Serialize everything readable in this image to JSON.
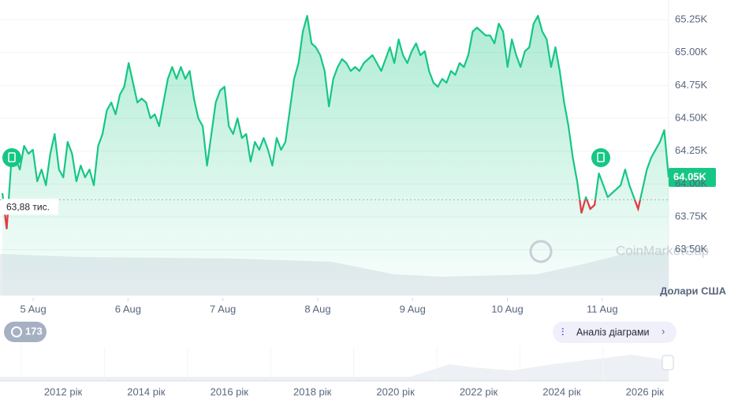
{
  "chart_data": {
    "type": "line",
    "series": [
      {
        "name": "Price",
        "color": "#16c784",
        "below_color": "#ea3943",
        "values": [
          63930,
          63660,
          64140,
          64200,
          64110,
          64290,
          64230,
          64260,
          64020,
          64110,
          63990,
          64230,
          64380,
          64110,
          64050,
          64320,
          64230,
          64020,
          64140,
          64050,
          64110,
          63990,
          64290,
          64380,
          64560,
          64620,
          64530,
          64680,
          64740,
          64920,
          64770,
          64620,
          64650,
          64620,
          64500,
          64530,
          64440,
          64620,
          64800,
          64890,
          64800,
          64890,
          64800,
          64860,
          64650,
          64500,
          64440,
          64140,
          64380,
          64620,
          64710,
          64740,
          64440,
          64380,
          64500,
          64350,
          64380,
          64170,
          64320,
          64260,
          64350,
          64260,
          64140,
          64350,
          64260,
          64320,
          64560,
          64800,
          64920,
          65160,
          65280,
          65070,
          65040,
          64980,
          64860,
          64590,
          64800,
          64890,
          64950,
          64920,
          64860,
          64890,
          64860,
          64920,
          64950,
          64980,
          64920,
          64860,
          64950,
          65040,
          64920,
          65100,
          64980,
          64920,
          65010,
          65070,
          64980,
          65010,
          64860,
          64770,
          64740,
          64800,
          64770,
          64860,
          64830,
          64920,
          64890,
          64980,
          65160,
          65190,
          65160,
          65130,
          65130,
          65070,
          65220,
          65160,
          64890,
          65100,
          64980,
          64890,
          65010,
          65040,
          65220,
          65280,
          65160,
          65100,
          64890,
          65040,
          64860,
          64620,
          64440,
          64200,
          64020,
          63780,
          63900,
          63810,
          63840,
          64080,
          63990,
          63900,
          63930,
          63960,
          63990,
          64110,
          63990,
          63900,
          63810,
          63960,
          64110,
          64200,
          64260,
          64320,
          64410,
          64050
        ]
      }
    ],
    "ylim": [
      63400,
      65400
    ],
    "yticks": [
      {
        "value": 63500,
        "label": "63.50K"
      },
      {
        "value": 63750,
        "label": "63.75K"
      },
      {
        "value": 64000,
        "label": "64.00K"
      },
      {
        "value": 64250,
        "label": "64.25K"
      },
      {
        "value": 64500,
        "label": "64.50K"
      },
      {
        "value": 64750,
        "label": "64.75K"
      },
      {
        "value": 65000,
        "label": "65.00K"
      },
      {
        "value": 65250,
        "label": "65.25K"
      }
    ],
    "xlim": [
      4.65,
      11.7
    ],
    "xticks": [
      {
        "value": 5,
        "label": "5 Aug"
      },
      {
        "value": 6,
        "label": "6 Aug"
      },
      {
        "value": 7,
        "label": "7 Aug"
      },
      {
        "value": 8,
        "label": "8 Aug"
      },
      {
        "value": 9,
        "label": "9 Aug"
      },
      {
        "value": 10,
        "label": "10 Aug"
      },
      {
        "value": 11,
        "label": "11 Aug"
      }
    ],
    "reference": {
      "value": 63880,
      "label": "63,88 тис."
    },
    "current": {
      "value": 64050,
      "label": "64.05K"
    },
    "currency_label": "Долари США",
    "watermark": "CoinMarketCap",
    "news_count": "173",
    "analysis_button": "Аналіз діаграми",
    "navigator_labels": [
      "2012 рік",
      "2014 рік",
      "2016 рік",
      "2018 рік",
      "2020 рік",
      "2022 рік",
      "2024 рік",
      "2026 рік"
    ]
  }
}
